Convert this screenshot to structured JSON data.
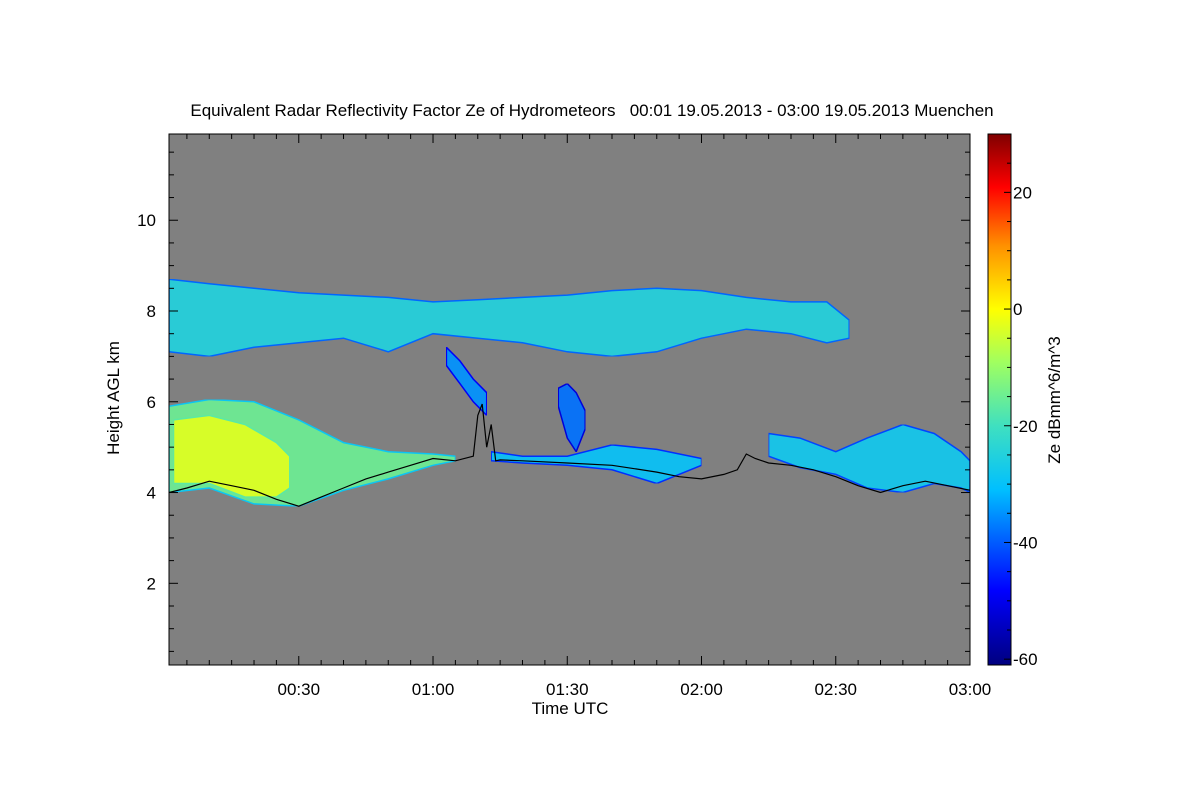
{
  "chart_data": {
    "type": "heatmap",
    "title": "Equivalent Radar Reflectivity Factor Ze of Hydrometeors   00:01 19.05.2013 - 03:00 19.05.2013 Muenchen",
    "xlabel": "Time UTC",
    "ylabel": "Height AGL km",
    "x_range_minutes_utc": [
      1,
      180
    ],
    "x_ticks": [
      {
        "t": 30,
        "label": "00:30"
      },
      {
        "t": 60,
        "label": "01:00"
      },
      {
        "t": 90,
        "label": "01:30"
      },
      {
        "t": 120,
        "label": "02:00"
      },
      {
        "t": 150,
        "label": "02:30"
      },
      {
        "t": 180,
        "label": "03:00"
      }
    ],
    "ylim": [
      0.2,
      11.9
    ],
    "y_ticks": [
      2,
      4,
      6,
      8,
      10
    ],
    "colorbar": {
      "label": "Ze dBmm^6/m^3",
      "range": [
        -61,
        30
      ],
      "ticks": [
        -60,
        -40,
        -20,
        0,
        20
      ]
    },
    "background": "#808080",
    "features": [
      {
        "name": "upper-cloud-layer",
        "ze_dbz": -25,
        "t": [
          1,
          10,
          20,
          30,
          40,
          50,
          60,
          70,
          80,
          90,
          100,
          110,
          120,
          130,
          140,
          148,
          153
        ],
        "top": [
          8.7,
          8.6,
          8.5,
          8.4,
          8.35,
          8.3,
          8.2,
          8.25,
          8.3,
          8.35,
          8.45,
          8.5,
          8.45,
          8.3,
          8.2,
          8.2,
          7.8
        ],
        "bottom": [
          7.1,
          7.0,
          7.2,
          7.3,
          7.4,
          7.1,
          7.5,
          7.4,
          7.3,
          7.1,
          7.0,
          7.1,
          7.4,
          7.6,
          7.5,
          7.3,
          7.4
        ]
      },
      {
        "name": "lower-cloud-layer-west",
        "ze_dbz": -15,
        "t": [
          1,
          10,
          20,
          30,
          40,
          50,
          60,
          65
        ],
        "top": [
          5.9,
          6.05,
          6.0,
          5.6,
          5.1,
          4.9,
          4.85,
          4.8
        ],
        "bottom": [
          4.0,
          4.1,
          3.75,
          3.7,
          4.05,
          4.3,
          4.6,
          4.7
        ]
      },
      {
        "name": "lower-cloud-core",
        "ze_dbz": -3,
        "t": [
          2,
          10,
          18,
          25,
          28
        ],
        "top": [
          5.6,
          5.7,
          5.5,
          5.1,
          4.8
        ],
        "bottom": [
          4.2,
          4.2,
          3.9,
          3.9,
          4.1
        ]
      },
      {
        "name": "fall-streak",
        "ze_dbz": -35,
        "t": [
          63,
          66,
          69,
          72
        ],
        "top": [
          7.2,
          6.9,
          6.5,
          6.2
        ],
        "bottom": [
          6.8,
          6.4,
          6.0,
          5.7
        ]
      },
      {
        "name": "isolated-echo",
        "ze_dbz": -38,
        "t": [
          88,
          90,
          92,
          94
        ],
        "top": [
          6.3,
          6.4,
          6.2,
          5.8
        ],
        "bottom": [
          5.9,
          5.2,
          4.9,
          5.4
        ]
      },
      {
        "name": "mid-cloud-patch",
        "ze_dbz": -30,
        "t": [
          73,
          80,
          90,
          100,
          110,
          120
        ],
        "top": [
          4.9,
          4.8,
          4.8,
          5.05,
          4.95,
          4.75
        ],
        "bottom": [
          4.7,
          4.65,
          4.6,
          4.5,
          4.2,
          4.6
        ]
      },
      {
        "name": "lower-cloud-layer-east",
        "ze_dbz": -28,
        "t": [
          135,
          142,
          150,
          157,
          165,
          172,
          178,
          180
        ],
        "top": [
          5.3,
          5.2,
          4.9,
          5.2,
          5.5,
          5.3,
          4.9,
          4.7
        ],
        "bottom": [
          4.8,
          4.55,
          4.4,
          4.1,
          4.0,
          4.2,
          4.1,
          4.0
        ]
      }
    ],
    "overlay_line": {
      "color": "#000000",
      "t": [
        1,
        5,
        10,
        15,
        20,
        25,
        30,
        35,
        40,
        45,
        50,
        55,
        60,
        65,
        69,
        70,
        71,
        72,
        73,
        74,
        75,
        80,
        90,
        100,
        110,
        115,
        120,
        125,
        128,
        130,
        132,
        135,
        140,
        145,
        150,
        155,
        160,
        165,
        170,
        175,
        180
      ],
      "h": [
        4.0,
        4.1,
        4.25,
        4.15,
        4.05,
        3.85,
        3.7,
        3.9,
        4.1,
        4.3,
        4.45,
        4.6,
        4.75,
        4.7,
        4.8,
        5.7,
        5.95,
        5.0,
        5.5,
        4.7,
        4.72,
        4.7,
        4.65,
        4.6,
        4.45,
        4.35,
        4.3,
        4.4,
        4.5,
        4.85,
        4.75,
        4.65,
        4.6,
        4.5,
        4.35,
        4.15,
        4.0,
        4.15,
        4.25,
        4.15,
        4.05
      ]
    }
  }
}
